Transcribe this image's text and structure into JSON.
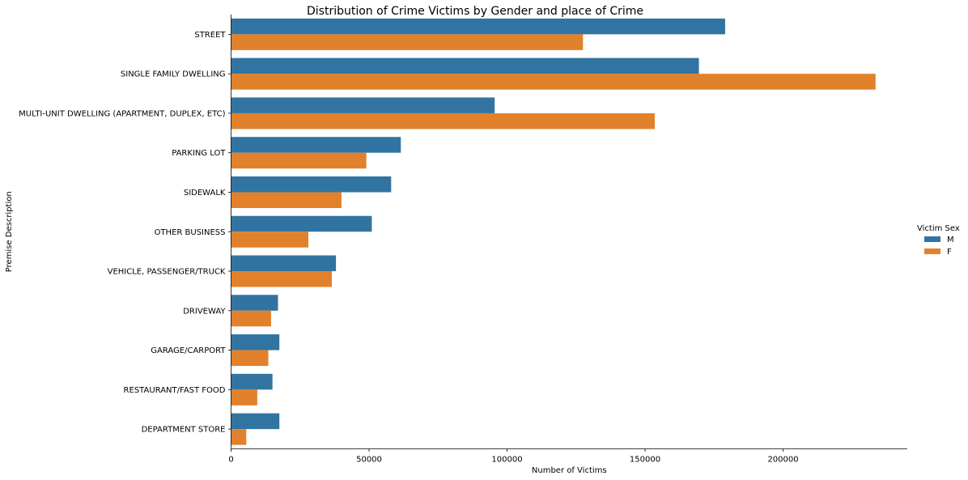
{
  "chart_data": {
    "type": "bar",
    "orientation": "horizontal",
    "title": "Distribution of Crime Victims by Gender and place of Crime",
    "xlabel": "Number of Victims",
    "ylabel": "Premise Description",
    "xlim": [
      0,
      245000
    ],
    "xticks": [
      0,
      50000,
      100000,
      150000,
      200000
    ],
    "xtick_labels": [
      "0",
      "50000",
      "100000",
      "150000",
      "200000"
    ],
    "grid": false,
    "legend": {
      "title": "Victim Sex",
      "placement": "right"
    },
    "categories": [
      "STREET",
      "SINGLE FAMILY DWELLING",
      "MULTI-UNIT DWELLING (APARTMENT, DUPLEX, ETC)",
      "PARKING LOT",
      "SIDEWALK",
      "OTHER BUSINESS",
      "VEHICLE, PASSENGER/TRUCK",
      "DRIVEWAY",
      "GARAGE/CARPORT",
      "RESTAURANT/FAST FOOD",
      "DEPARTMENT STORE"
    ],
    "series": [
      {
        "name": "M",
        "color": "#3274a1",
        "values": [
          179000,
          169500,
          95500,
          61500,
          58000,
          51000,
          38000,
          17000,
          17500,
          15000,
          17500
        ]
      },
      {
        "name": "F",
        "color": "#e1812c",
        "values": [
          127500,
          233500,
          153500,
          49000,
          40000,
          28000,
          36500,
          14500,
          13500,
          9500,
          5500
        ]
      }
    ]
  }
}
